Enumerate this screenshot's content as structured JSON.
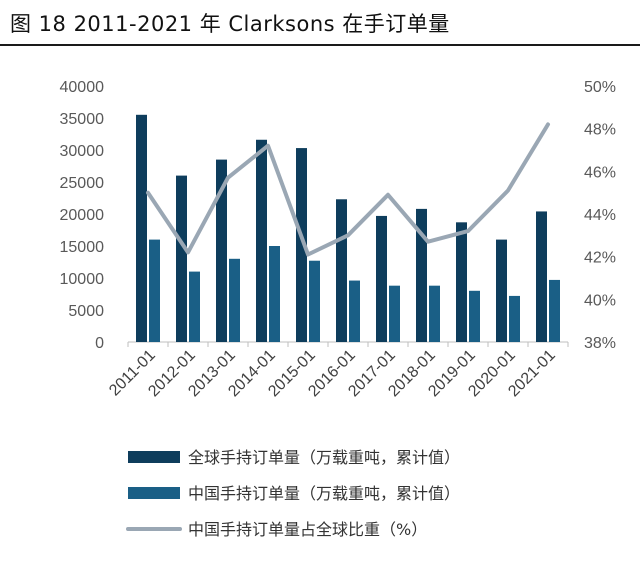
{
  "header": {
    "title": "图 18 2011-2021 年 Clarksons 在手订单量"
  },
  "colors": {
    "global_bar": "#0e3d5c",
    "china_bar": "#1a5f86",
    "share_line": "#9aa7b4",
    "axis": "#bfbfbf"
  },
  "chart_data": {
    "type": "bar",
    "title": "图 18 2011-2021 年 Clarksons 在手订单量",
    "categories": [
      "2011-01",
      "2012-01",
      "2013-01",
      "2014-01",
      "2015-01",
      "2016-01",
      "2017-01",
      "2018-01",
      "2019-01",
      "2020-01",
      "2021-01"
    ],
    "series": [
      {
        "name": "全球手持订单量（万载重吨，累计值）",
        "type": "bar",
        "axis": "left",
        "values": [
          35500,
          26000,
          28500,
          31600,
          30300,
          22300,
          19700,
          20800,
          18700,
          16000,
          20400
        ]
      },
      {
        "name": "中国手持订单量（万载重吨，累计值）",
        "type": "bar",
        "axis": "left",
        "values": [
          16000,
          11000,
          13000,
          15000,
          12700,
          9600,
          8800,
          8800,
          8000,
          7200,
          9700
        ]
      },
      {
        "name": "中国手持订单量占全球比重（%）",
        "type": "line",
        "axis": "right",
        "values": [
          45.0,
          42.2,
          45.7,
          47.2,
          42.1,
          43.0,
          44.9,
          42.7,
          43.2,
          45.1,
          48.2
        ]
      }
    ],
    "y_left": {
      "min": 0,
      "max": 40000,
      "ticks": [
        0,
        5000,
        10000,
        15000,
        20000,
        25000,
        30000,
        35000,
        40000
      ]
    },
    "y_right": {
      "min": 38,
      "max": 50,
      "ticks": [
        "38%",
        "40%",
        "42%",
        "44%",
        "46%",
        "48%",
        "50%"
      ]
    },
    "grid": false,
    "legend_position": "bottom"
  }
}
